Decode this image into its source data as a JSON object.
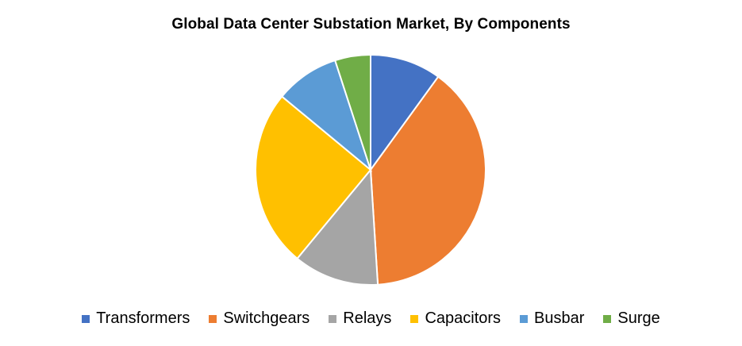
{
  "chart_data": {
    "type": "pie",
    "title": "Global Data Center Substation Market, By Components",
    "legend_position": "bottom",
    "categories": [
      "Transformers",
      "Switchgears",
      "Relays",
      "Capacitors",
      "Busbar",
      "Surge"
    ],
    "values": [
      10,
      39,
      12,
      25,
      9,
      5
    ],
    "colors": [
      "#4472C4",
      "#ED7D31",
      "#A5A5A5",
      "#FFC000",
      "#5B9BD5",
      "#70AD47"
    ]
  }
}
